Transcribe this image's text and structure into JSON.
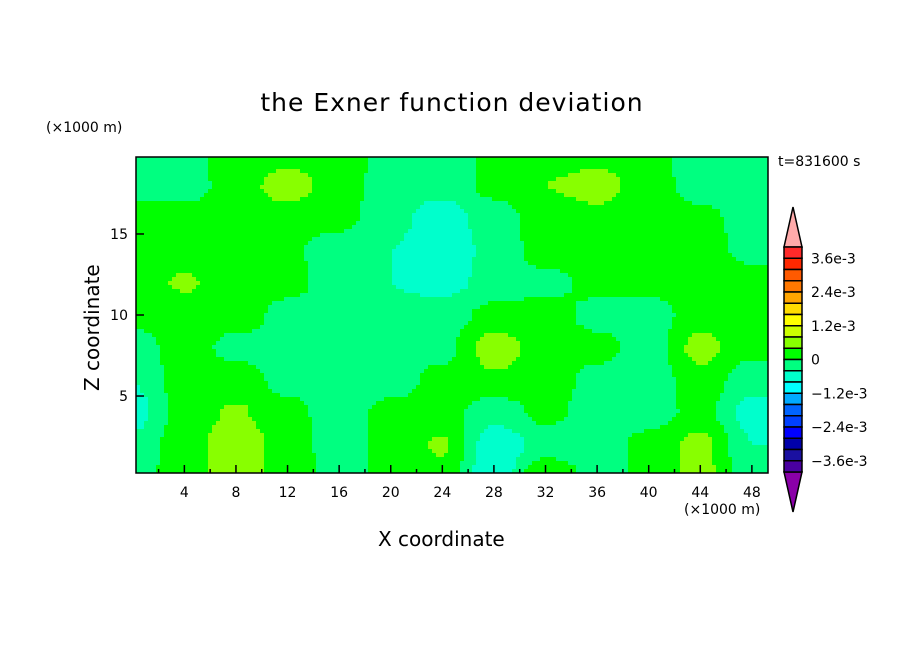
{
  "chart_data": {
    "type": "heatmap",
    "subtype": "filled-contour",
    "title": "the Exner function deviation",
    "xlabel": "X coordinate",
    "ylabel": "Z coordinate",
    "x_unit_label": "(×1000 m)",
    "y_unit_label": "(×1000 m)",
    "time_label": "t=831600 s",
    "xlim": [
      0.25,
      49.25
    ],
    "ylim": [
      0.25,
      19.75
    ],
    "xticks": [
      4,
      8,
      12,
      16,
      20,
      24,
      28,
      32,
      36,
      40,
      44,
      48
    ],
    "yticks": [
      5,
      10,
      15
    ],
    "grid": false,
    "x": [
      0,
      4,
      8,
      12,
      16,
      20,
      24,
      28,
      32,
      36,
      40,
      44,
      48
    ],
    "y": [
      0,
      2,
      4,
      6,
      8,
      10,
      12,
      14,
      16,
      18,
      20
    ],
    "z": [
      [
        -0.0002,
        0.00027,
        0.0006,
        0.00027,
        -0.0002,
        0.00013,
        0.00027,
        -0.0008,
        0.00045,
        -0.0002,
        0.00013,
        0.00055,
        -0.00027
      ],
      [
        -0.00027,
        0.0002,
        0.00067,
        0.0002,
        -0.0002,
        0.00013,
        0.00045,
        -0.00067,
        -0.00027,
        -0.0002,
        0.00013,
        0.00055,
        -0.0004
      ],
      [
        -0.0006,
        0.0002,
        0.00045,
        0.00013,
        -0.0002,
        0.00013,
        0.0002,
        -0.00027,
        0.00013,
        -0.0002,
        -0.0002,
        0.00013,
        -0.00055
      ],
      [
        -0.0004,
        0.0002,
        0.0002,
        -0.00013,
        -0.0002,
        -0.0002,
        0.00013,
        0.00035,
        0.0002,
        -0.00013,
        -0.00027,
        0.00027,
        -0.00027
      ],
      [
        -0.0002,
        0.0002,
        -0.00013,
        -0.0002,
        -0.0002,
        -0.00027,
        -0.00013,
        0.0006,
        0.0002,
        0.00013,
        -0.0002,
        0.00055,
        0.00013
      ],
      [
        0.00013,
        0.0002,
        0.0002,
        -0.00013,
        -0.0002,
        -0.00027,
        -0.0002,
        0.00013,
        0.0002,
        -0.00013,
        -0.0002,
        0.0002,
        0.0002
      ],
      [
        0.0002,
        0.00045,
        0.0002,
        0.00013,
        -0.0002,
        -0.0004,
        -0.00055,
        -0.00027,
        -0.00013,
        0.00013,
        0.00013,
        0.0002,
        0.0002
      ],
      [
        0.0002,
        0.0002,
        0.0002,
        7e-05,
        -0.0002,
        -0.0004,
        -0.00067,
        -0.00027,
        0.0002,
        0.0002,
        0.0002,
        0.0002,
        -0.00013
      ],
      [
        0.0002,
        0.0002,
        0.0002,
        0.0002,
        0.00013,
        -0.00027,
        -0.0006,
        -0.0002,
        0.0002,
        0.0003,
        0.0002,
        0.00013,
        -0.0002
      ],
      [
        -0.0002,
        -0.0002,
        0.0002,
        0.0006,
        0.0002,
        -0.0002,
        -0.00027,
        0.00013,
        0.0004,
        0.00055,
        0.0002,
        -0.0002,
        -0.00027
      ],
      [
        -0.0002,
        -0.00013,
        0.0002,
        0.0002,
        0.0002,
        -0.00013,
        -0.00027,
        0.00013,
        0.0002,
        0.00027,
        0.00013,
        -0.0002,
        -0.0004
      ]
    ],
    "colorbar": {
      "levels": [
        0.004,
        0.0036,
        0.0032,
        0.0028,
        0.0024,
        0.002,
        0.0016,
        0.0012,
        0.0008,
        0.0004,
        0,
        -0.0004,
        -0.0008,
        -0.0012,
        -0.0016,
        -0.002,
        -0.0024,
        -0.0028,
        -0.0032,
        -0.0036,
        -0.004
      ],
      "colors": [
        "#ff2a2a",
        "#ff2800",
        "#ff5a00",
        "#ff7800",
        "#ffa500",
        "#ffdc00",
        "#ffff00",
        "#ccff00",
        "#88ff00",
        "#00ff00",
        "#00ff80",
        "#00ffcc",
        "#00ffff",
        "#00aaff",
        "#0064ff",
        "#0040ff",
        "#0000ff",
        "#0000aa",
        "#1a10a0",
        "#4a00a0"
      ],
      "over_color": "#ffaaaa",
      "under_color": "#8a00a8",
      "labels": [
        {
          "level_index": 1,
          "text": "3.6e-3"
        },
        {
          "level_index": 4,
          "text": "2.4e-3"
        },
        {
          "level_index": 7,
          "text": "1.2e-3"
        },
        {
          "level_index": 10,
          "text": "0"
        },
        {
          "level_index": 13,
          "text": "−1.2e-3"
        },
        {
          "level_index": 16,
          "text": "−2.4e-3"
        },
        {
          "level_index": 19,
          "text": "−3.6e-3"
        }
      ]
    }
  }
}
